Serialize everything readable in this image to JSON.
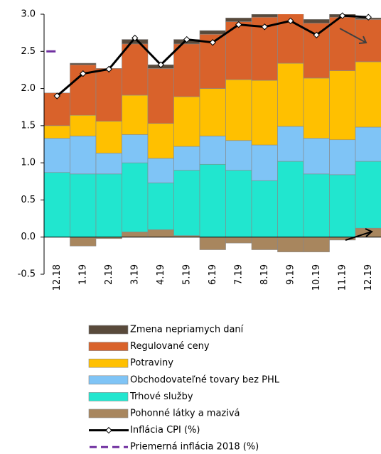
{
  "chart_data": {
    "type": "bar",
    "categories": [
      "12.18",
      "1.19",
      "2.19",
      "3.19",
      "4.19",
      "5.19",
      "6.19",
      "7.19",
      "8.19",
      "9.19",
      "10.19",
      "11.19",
      "12.19"
    ],
    "series": [
      {
        "name": "Zmena nepriamych daní",
        "color": "#594a3b",
        "values": [
          0,
          0.02,
          0,
          0.06,
          0.05,
          0.06,
          0.05,
          0.05,
          0.04,
          0.04,
          0.05,
          0.04,
          0.02
        ]
      },
      {
        "name": "Regulované ceny",
        "color": "#d9622b",
        "values": [
          0.44,
          0.68,
          0.71,
          0.69,
          0.74,
          0.71,
          0.73,
          0.78,
          0.85,
          0.7,
          0.74,
          0.72,
          0.57
        ]
      },
      {
        "name": "Potraviny",
        "color": "#ffc000",
        "values": [
          0.17,
          0.28,
          0.43,
          0.53,
          0.47,
          0.67,
          0.64,
          0.82,
          0.87,
          0.85,
          0.81,
          0.93,
          0.88
        ]
      },
      {
        "name": "Obchodovateľné tovary bez PHL",
        "color": "#7fc4f6",
        "values": [
          0.46,
          0.51,
          0.28,
          0.38,
          0.33,
          0.32,
          0.38,
          0.4,
          0.48,
          0.47,
          0.48,
          0.47,
          0.46
        ]
      },
      {
        "name": "Trhové služby",
        "color": "#21e6cf",
        "values": [
          0.87,
          0.85,
          0.85,
          0.93,
          0.63,
          0.88,
          0.98,
          0.9,
          0.76,
          1.02,
          0.85,
          0.84,
          0.9
        ]
      },
      {
        "name": "Pohonné látky a mazivá",
        "color": "#a8865e",
        "values": [
          0,
          -0.12,
          -0.02,
          0.07,
          0.1,
          0.02,
          -0.17,
          -0.08,
          -0.17,
          -0.2,
          -0.2,
          -0.04,
          0.12
        ]
      },
      {
        "name": "Inflácia CPI (%)",
        "type": "line",
        "color": "#000000",
        "values": [
          1.9,
          2.2,
          2.26,
          2.68,
          2.32,
          2.66,
          2.62,
          2.86,
          2.83,
          2.91,
          2.72,
          2.98,
          2.96
        ]
      },
      {
        "name": "Priemerná inflácia 2018 (%)",
        "type": "line",
        "dashed": true,
        "color": "#7030a0",
        "values": [
          2.5,
          null,
          null,
          null,
          null,
          null,
          null,
          null,
          null,
          null,
          null,
          null,
          null
        ]
      }
    ],
    "ylim": [
      -0.5,
      3.0
    ],
    "yticks": [
      {
        "value": -0.5,
        "label": "-0.5"
      },
      {
        "value": 0,
        "label": "0.0"
      },
      {
        "value": 0.5,
        "label": "0.5"
      },
      {
        "value": 1,
        "label": "1.0"
      },
      {
        "value": 1.5,
        "label": "1.5"
      },
      {
        "value": 2,
        "label": "2.0"
      },
      {
        "value": 2.5,
        "label": "2.5"
      },
      {
        "value": 3,
        "label": "3.0"
      }
    ]
  }
}
